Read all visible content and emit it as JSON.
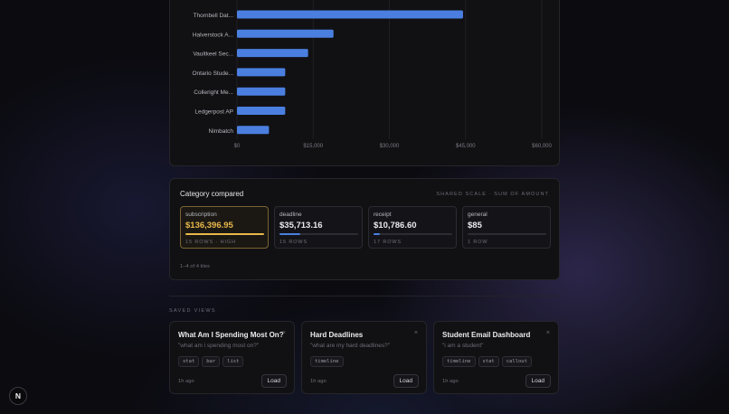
{
  "chart_data": {
    "type": "bar",
    "orientation": "horizontal",
    "categories": [
      "Thornbell Dat...",
      "Halverstock A...",
      "Vaultkeel Sec...",
      "Ontario Stude...",
      "Colleright Me...",
      "Ledgerpost AP",
      "Nimbatch"
    ],
    "values": [
      44500,
      19000,
      14000,
      9500,
      9500,
      9500,
      6300
    ],
    "xlim": [
      0,
      60000
    ],
    "xticks": [
      "$0",
      "$15,000",
      "$30,000",
      "$45,000",
      "$60,000"
    ],
    "xtick_values": [
      0,
      15000,
      30000,
      45000,
      60000
    ],
    "grid": true,
    "bar_color": "#4a7fe0"
  },
  "category": {
    "title": "Category compared",
    "hint": "SHARED SCALE · SUM OF AMOUNT",
    "tiles": [
      {
        "label": "subscription",
        "value": "$136,396.95",
        "meta": "15 ROWS · HIGH",
        "fraction": 1.0,
        "active": true
      },
      {
        "label": "deadline",
        "value": "$35,713.16",
        "meta": "15 ROWS",
        "fraction": 0.26,
        "active": false
      },
      {
        "label": "receipt",
        "value": "$10,786.60",
        "meta": "17 ROWS",
        "fraction": 0.08,
        "active": false
      },
      {
        "label": "general",
        "value": "$85",
        "meta": "1 ROW",
        "fraction": 0.0,
        "active": false
      }
    ],
    "count": "1–4 of 4 tiles"
  },
  "saved": {
    "heading": "SAVED VIEWS",
    "cards": [
      {
        "title": "What Am I Spending Most On?",
        "query": "\"what am i spending most on?\"",
        "tags": [
          "stat",
          "bar",
          "list"
        ],
        "time": "1h ago",
        "load": "Load"
      },
      {
        "title": "Hard Deadlines",
        "query": "\"what are my hard deadlines?\"",
        "tags": [
          "timeline"
        ],
        "time": "1h ago",
        "load": "Load"
      },
      {
        "title": "Student Email Dashboard",
        "query": "\"i am a student\"",
        "tags": [
          "timeline",
          "stat",
          "callout"
        ],
        "time": "1h ago",
        "load": "Load"
      }
    ]
  },
  "close_glyph": "×",
  "badge": "N"
}
